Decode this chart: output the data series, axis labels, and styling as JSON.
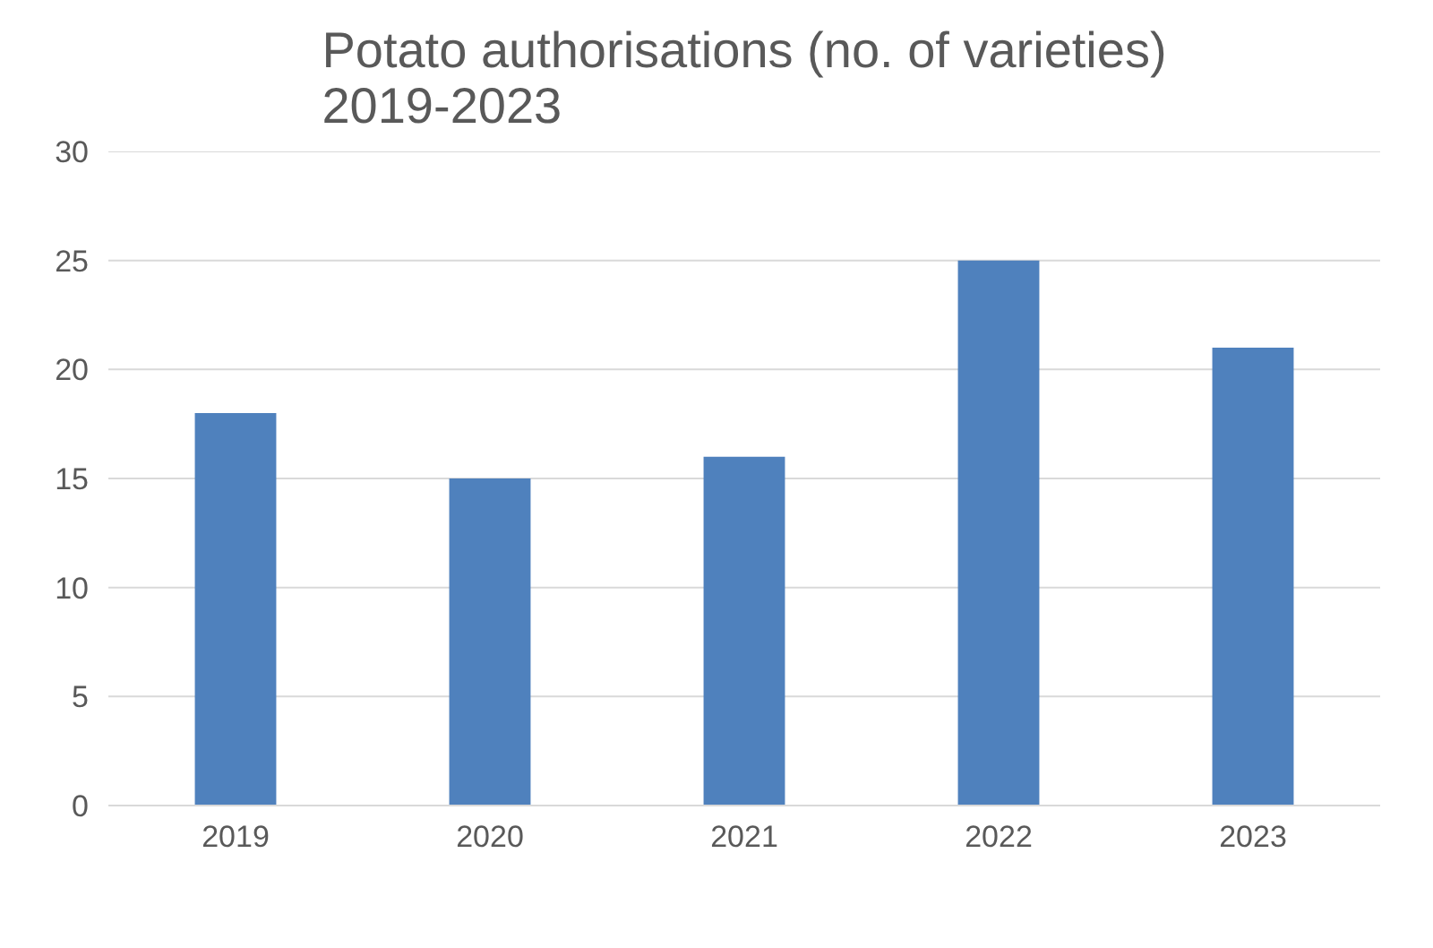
{
  "chart_data": {
    "type": "bar",
    "title": "Potato authorisations (no. of varieties)\n2019-2023",
    "categories": [
      "2019",
      "2020",
      "2021",
      "2022",
      "2023"
    ],
    "values": [
      18,
      15,
      16,
      25,
      21
    ],
    "color": "#4f81bd",
    "ylim": [
      0,
      30
    ],
    "yticks": [
      0,
      5,
      10,
      15,
      20,
      25,
      30
    ],
    "grid": "y"
  }
}
